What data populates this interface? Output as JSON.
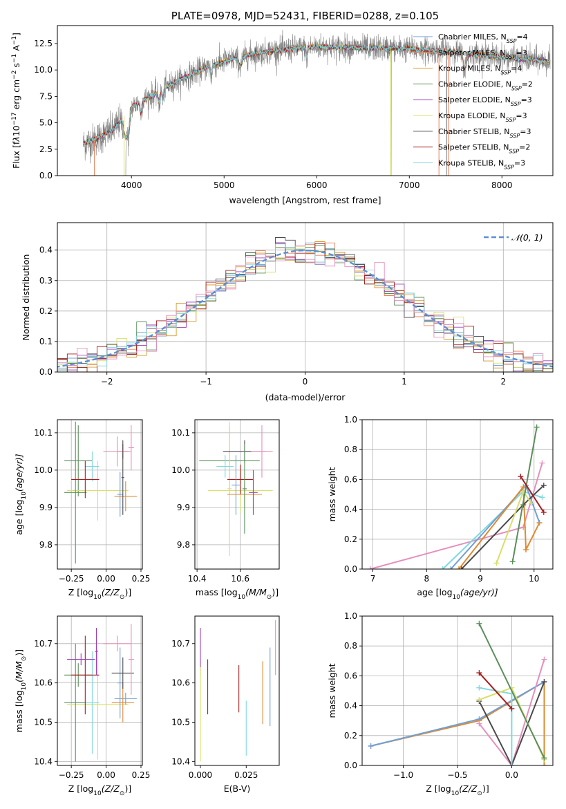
{
  "colors": {
    "chabrier_miles": "#6f9fd8",
    "salpeter_miles": "#ec7f58",
    "kroupa_miles": "#d49a2a",
    "chabrier_elodie": "#5a8f5a",
    "salpeter_elodie": "#9b3db8",
    "kroupa_elodie": "#d8df6a",
    "chabrier_stelib": "#4a4a4a",
    "salpeter_stelib": "#a81c1c",
    "kroupa_stelib": "#7fd8df",
    "model_pink": "#e58fbd",
    "model_orange": "#e08a30",
    "data_gray": "#808080",
    "normal_dashed": "#5a8fd6",
    "grid": "#b0b0b0"
  },
  "chart_data": [
    {
      "id": "spectrum",
      "type": "line",
      "title": "PLATE=0978, MJD=52431, FIBERID=0288, z=0.105",
      "xlabel": "wavelength [Angstrom, rest frame]",
      "ylabel_parts": [
        "Flux [f",
        "λ",
        "10",
        "−17",
        " erg cm",
        "−2",
        " s",
        "−1",
        " A",
        "−1",
        "]"
      ],
      "xlim": [
        3200,
        8550
      ],
      "ylim": [
        0,
        14.2
      ],
      "xticks": [
        "4000",
        "5000",
        "6000",
        "7000",
        "8000"
      ],
      "yticks": [
        "0.0",
        "2.5",
        "5.0",
        "7.5",
        "10.0",
        "12.5"
      ],
      "xtick_values": [
        4000,
        5000,
        6000,
        7000,
        8000
      ],
      "ytick_values": [
        0,
        2.5,
        5,
        7.5,
        10,
        12.5
      ],
      "continuum": {
        "x": [
          3480,
          3600,
          3800,
          4000,
          4200,
          4500,
          4800,
          5000,
          5200,
          5500,
          6000,
          6500,
          7000,
          7500,
          8000,
          8520
        ],
        "y": [
          3.0,
          3.4,
          4.3,
          6.5,
          7.5,
          9.0,
          10.2,
          10.8,
          11.3,
          11.8,
          12.2,
          12.1,
          12.0,
          11.7,
          11.2,
          10.8
        ]
      },
      "legend": {
        "placement": "upper right",
        "entries": [
          {
            "label": "Chabrier MILES, N",
            "sub": "SSP",
            "suffix": "=4",
            "color_key": "chabrier_miles"
          },
          {
            "label": "Salpeter MILES, N",
            "sub": "SSP",
            "suffix": "=3",
            "color_key": "salpeter_miles"
          },
          {
            "label": "Kroupa MILES, N",
            "sub": "SSP",
            "suffix": "=4",
            "color_key": "kroupa_miles"
          },
          {
            "label": "Chabrier ELODIE, N",
            "sub": "SSP",
            "suffix": "=2",
            "color_key": "chabrier_elodie"
          },
          {
            "label": "Salpeter ELODIE, N",
            "sub": "SSP",
            "suffix": "=3",
            "color_key": "salpeter_elodie"
          },
          {
            "label": "Kroupa ELODIE, N",
            "sub": "SSP",
            "suffix": "=3",
            "color_key": "kroupa_elodie"
          },
          {
            "label": "Chabrier STELIB, N",
            "sub": "SSP",
            "suffix": "=3",
            "color_key": "chabrier_stelib"
          },
          {
            "label": "Salpeter STELIB, N",
            "sub": "SSP",
            "suffix": "=2",
            "color_key": "salpeter_stelib"
          },
          {
            "label": "Kroupa STELIB, N",
            "sub": "SSP",
            "suffix": "=3",
            "color_key": "kroupa_stelib"
          }
        ]
      }
    },
    {
      "id": "residuals",
      "type": "histogram",
      "xlabel": "(data-model)/error",
      "ylabel": "Normed distribution",
      "xlim": [
        -2.5,
        2.5
      ],
      "ylim": [
        0,
        0.49
      ],
      "xticks": [
        "−2",
        "−1",
        "0",
        "1",
        "2"
      ],
      "xtick_values": [
        -2,
        -1,
        0,
        1,
        2
      ],
      "yticks": [
        "0.0",
        "0.1",
        "0.2",
        "0.3",
        "0.4"
      ],
      "ytick_values": [
        0,
        0.1,
        0.2,
        0.3,
        0.4
      ],
      "grid": true,
      "legend_label": "𝒩(0, 1)",
      "bin_width": 0.1
    },
    {
      "id": "age_vs_Z",
      "type": "errorbar",
      "xlabel_parts": [
        "Z [log",
        "10",
        "(Z/Z",
        "⊙",
        ")]"
      ],
      "ylabel_parts": [
        "age  [log",
        "10",
        "(age/yr)]"
      ],
      "xlim": [
        -0.35,
        0.26
      ],
      "ylim": [
        9.735,
        10.135
      ],
      "xticks": [
        "−0.25",
        "0.00",
        "0.25"
      ],
      "xtick_values": [
        -0.25,
        0,
        0.25
      ],
      "yticks": [
        "9.8",
        "9.9",
        "10.0",
        "10.1"
      ],
      "ytick_values": [
        9.8,
        9.9,
        10.0,
        10.1
      ],
      "grid": true,
      "points": [
        {
          "x": -0.2,
          "xerr": 0.1,
          "y": 10.025,
          "yerr": 0.095,
          "color_key": "chabrier_elodie"
        },
        {
          "x": -0.06,
          "xerr": 0.22,
          "y": 9.945,
          "yerr": 0.08,
          "color_key": "kroupa_elodie"
        },
        {
          "x": -0.22,
          "xerr": 0.08,
          "y": 9.94,
          "yerr": 0.19,
          "color_key": "chabrier_elodie"
        },
        {
          "x": -0.1,
          "xerr": 0.05,
          "y": 10.01,
          "yerr": 0.04,
          "color_key": "kroupa_stelib"
        },
        {
          "x": -0.15,
          "xerr": 0.1,
          "y": 9.975,
          "yerr": 0.05,
          "color_key": "salpeter_stelib"
        },
        {
          "x": 0.12,
          "xerr": 0.04,
          "y": 10.05,
          "yerr": 0.02,
          "color_key": "salpeter_stelib"
        },
        {
          "x": 0.08,
          "xerr": 0.1,
          "y": 10.05,
          "yerr": 0.04,
          "color_key": "model_pink"
        },
        {
          "x": 0.1,
          "xerr": 0.02,
          "y": 9.935,
          "yerr": 0.06,
          "color_key": "chabrier_miles"
        },
        {
          "x": 0.14,
          "xerr": 0.08,
          "y": 9.93,
          "yerr": 0.04,
          "color_key": "model_orange"
        },
        {
          "x": 0.18,
          "xerr": 0.02,
          "y": 10.06,
          "yerr": 0.06,
          "color_key": "model_pink"
        },
        {
          "x": 0.12,
          "xerr": 0.01,
          "y": 9.98,
          "yerr": 0.1,
          "color_key": "chabrier_stelib"
        }
      ]
    },
    {
      "id": "age_vs_mass",
      "type": "errorbar",
      "xlabel_parts": [
        "mass [log",
        "10",
        "(M/M",
        "⊙",
        ")]"
      ],
      "xlim": [
        10.39,
        10.78
      ],
      "ylim": [
        9.735,
        10.135
      ],
      "xticks": [
        "10.4",
        "10.6"
      ],
      "xtick_values": [
        10.4,
        10.6
      ],
      "yticks": [
        "9.8",
        "9.9",
        "10.0",
        "10.1"
      ],
      "ytick_values": [
        9.8,
        9.9,
        10.0,
        10.1
      ],
      "grid": true,
      "points": [
        {
          "x": 10.55,
          "xerr": 0.14,
          "y": 10.025,
          "yerr": 0.09,
          "color_key": "chabrier_elodie"
        },
        {
          "x": 10.6,
          "xerr": 0.15,
          "y": 9.945,
          "yerr": 0.06,
          "color_key": "kroupa_elodie"
        },
        {
          "x": 10.55,
          "xerr": 0.01,
          "y": 9.95,
          "yerr": 0.18,
          "color_key": "kroupa_elodie"
        },
        {
          "x": 10.53,
          "xerr": 0.04,
          "y": 10.01,
          "yerr": 0.03,
          "color_key": "kroupa_stelib"
        },
        {
          "x": 10.6,
          "xerr": 0.06,
          "y": 9.975,
          "yerr": 0.04,
          "color_key": "salpeter_stelib"
        },
        {
          "x": 10.62,
          "xerr": 0.1,
          "y": 10.05,
          "yerr": 0.03,
          "color_key": "chabrier_stelib"
        },
        {
          "x": 10.7,
          "xerr": 0.05,
          "y": 10.05,
          "yerr": 0.07,
          "color_key": "model_pink"
        },
        {
          "x": 10.58,
          "xerr": 0.02,
          "y": 9.96,
          "yerr": 0.08,
          "color_key": "chabrier_miles"
        },
        {
          "x": 10.62,
          "xerr": 0.08,
          "y": 9.935,
          "yerr": 0.03,
          "color_key": "model_orange"
        },
        {
          "x": 10.66,
          "xerr": 0.02,
          "y": 9.94,
          "yerr": 0.06,
          "color_key": "salpeter_elodie"
        },
        {
          "x": 10.62,
          "xerr": 0.01,
          "y": 9.95,
          "yerr": 0.12,
          "color_key": "chabrier_elodie"
        }
      ]
    },
    {
      "id": "weight_vs_age",
      "type": "line",
      "xlabel_parts": [
        "age  [log",
        "10",
        "(age/yr)]"
      ],
      "ylabel": "mass weight",
      "xlim": [
        6.8,
        10.35
      ],
      "ylim": [
        0,
        1
      ],
      "xticks": [
        "7",
        "8",
        "9",
        "10"
      ],
      "xtick_values": [
        7,
        8,
        9,
        10
      ],
      "yticks": [
        "0.0",
        "0.2",
        "0.4",
        "0.6",
        "0.8",
        "1.0"
      ],
      "ytick_values": [
        0,
        0.2,
        0.4,
        0.6,
        0.8,
        1.0
      ],
      "grid": true,
      "series": [
        {
          "color_key": "model_pink",
          "x": [
            6.95,
            9.8,
            10.15
          ],
          "y": [
            0.0,
            0.28,
            0.71
          ]
        },
        {
          "color_key": "kroupa_stelib",
          "x": [
            8.3,
            9.8,
            10.15
          ],
          "y": [
            0.0,
            0.52,
            0.48
          ]
        },
        {
          "color_key": "chabrier_miles",
          "x": [
            8.45,
            9.85,
            10.1
          ],
          "y": [
            0.0,
            0.56,
            0.31
          ]
        },
        {
          "color_key": "model_orange",
          "x": [
            8.6,
            9.8,
            9.85,
            10.1
          ],
          "y": [
            0.0,
            0.55,
            0.13,
            0.31
          ]
        },
        {
          "color_key": "chabrier_stelib",
          "x": [
            8.65,
            9.8,
            10.18
          ],
          "y": [
            0.0,
            0.43,
            0.56
          ]
        },
        {
          "color_key": "kroupa_elodie",
          "x": [
            9.3,
            9.8,
            9.95
          ],
          "y": [
            0.04,
            0.52,
            0.44
          ]
        },
        {
          "color_key": "chabrier_elodie",
          "x": [
            9.6,
            10.05
          ],
          "y": [
            0.05,
            0.95
          ]
        },
        {
          "color_key": "salpeter_stelib",
          "x": [
            9.75,
            10.18
          ],
          "y": [
            0.62,
            0.38
          ]
        }
      ]
    },
    {
      "id": "mass_vs_Z",
      "type": "errorbar",
      "xlabel_parts": [
        "Z [log",
        "10",
        "(Z/Z",
        "⊙",
        ")]"
      ],
      "ylabel_parts": [
        "mass [log",
        "10",
        "(M/M",
        "⊙",
        ")]"
      ],
      "xlim": [
        -0.35,
        0.26
      ],
      "ylim": [
        10.39,
        10.77
      ],
      "xticks": [
        "−0.25",
        "0.00",
        "0.25"
      ],
      "xtick_values": [
        -0.25,
        0,
        0.25
      ],
      "yticks": [
        "10.4",
        "10.5",
        "10.6",
        "10.7"
      ],
      "ytick_values": [
        10.4,
        10.5,
        10.6,
        10.7
      ],
      "grid": true,
      "points": [
        {
          "x": -0.2,
          "xerr": 0.1,
          "y": 10.62,
          "yerr": 0.03,
          "color_key": "chabrier_elodie"
        },
        {
          "x": -0.06,
          "xerr": 0.22,
          "y": 10.545,
          "yerr": 0.14,
          "color_key": "kroupa_elodie"
        },
        {
          "x": -0.22,
          "xerr": 0.08,
          "y": 10.55,
          "yerr": 0.15,
          "color_key": "chabrier_elodie"
        },
        {
          "x": -0.1,
          "xerr": 0.05,
          "y": 10.55,
          "yerr": 0.13,
          "color_key": "kroupa_stelib"
        },
        {
          "x": -0.15,
          "xerr": 0.1,
          "y": 10.62,
          "yerr": 0.1,
          "color_key": "salpeter_stelib"
        },
        {
          "x": -0.18,
          "xerr": 0.1,
          "y": 10.66,
          "yerr": 0.015,
          "color_key": "salpeter_elodie"
        },
        {
          "x": -0.07,
          "xerr": 0.01,
          "y": 10.68,
          "yerr": 0.06,
          "color_key": "salpeter_elodie"
        },
        {
          "x": 0.08,
          "xerr": 0.1,
          "y": 10.7,
          "yerr": 0.02,
          "color_key": "model_pink"
        },
        {
          "x": 0.1,
          "xerr": 0.02,
          "y": 10.6,
          "yerr": 0.09,
          "color_key": "chabrier_miles"
        },
        {
          "x": 0.14,
          "xerr": 0.08,
          "y": 10.56,
          "yerr": 0.015,
          "color_key": "chabrier_miles"
        },
        {
          "x": 0.12,
          "xerr": 0.08,
          "y": 10.55,
          "yerr": 0.05,
          "color_key": "model_orange"
        },
        {
          "x": 0.12,
          "xerr": 0.08,
          "y": 10.625,
          "yerr": 0.04,
          "color_key": "chabrier_stelib"
        },
        {
          "x": 0.18,
          "xerr": 0.02,
          "y": 10.66,
          "yerr": 0.09,
          "color_key": "model_pink"
        }
      ]
    },
    {
      "id": "mass_vs_ebv",
      "type": "errorbar",
      "xlabel": "E(B-V)",
      "xlim": [
        -0.003,
        0.043
      ],
      "ylim": [
        10.39,
        10.77
      ],
      "xticks": [
        "0.000",
        "0.025"
      ],
      "xtick_values": [
        0,
        0.025
      ],
      "yticks": [
        "10.4",
        "10.5",
        "10.6",
        "10.7"
      ],
      "ytick_values": [
        10.4,
        10.5,
        10.6,
        10.7
      ],
      "grid": false,
      "points": [
        {
          "x": 0.0,
          "y": 10.68,
          "yerr": 0.06,
          "color_key": "salpeter_elodie"
        },
        {
          "x": 0.0,
          "y": 10.52,
          "yerr": 0.12,
          "color_key": "kroupa_elodie"
        },
        {
          "x": 0.004,
          "y": 10.59,
          "yerr": 0.07,
          "color_key": "chabrier_stelib"
        },
        {
          "x": 0.021,
          "y": 10.585,
          "yerr": 0.06,
          "color_key": "salpeter_stelib"
        },
        {
          "x": 0.025,
          "y": 10.485,
          "yerr": 0.07,
          "color_key": "kroupa_stelib"
        },
        {
          "x": 0.034,
          "y": 10.575,
          "yerr": 0.08,
          "color_key": "model_orange"
        },
        {
          "x": 0.038,
          "y": 10.59,
          "yerr": 0.1,
          "color_key": "chabrier_miles"
        },
        {
          "x": 0.041,
          "y": 10.69,
          "yerr": 0.07,
          "color_key": "model_pink"
        }
      ]
    },
    {
      "id": "weight_vs_Z",
      "type": "line",
      "xlabel_parts": [
        "Z [log",
        "10",
        "(Z/Z",
        "⊙",
        ")]"
      ],
      "ylabel": "mass weight",
      "xlim": [
        -1.38,
        0.38
      ],
      "ylim": [
        0,
        1
      ],
      "xticks": [
        "−1.0",
        "−0.5",
        "0.0"
      ],
      "xtick_values": [
        -1.0,
        -0.5,
        0
      ],
      "yticks": [
        "0.0",
        "0.2",
        "0.4",
        "0.6",
        "0.8",
        "1.0"
      ],
      "ytick_values": [
        0,
        0.2,
        0.4,
        0.6,
        0.8,
        1.0
      ],
      "grid": true,
      "series": [
        {
          "color_key": "model_orange",
          "x": [
            -1.3,
            -0.3,
            0.3,
            0.3
          ],
          "y": [
            0.13,
            0.3,
            0.56,
            0.0
          ]
        },
        {
          "color_key": "chabrier_miles",
          "x": [
            -1.3,
            -0.3,
            0.3
          ],
          "y": [
            0.13,
            0.31,
            0.56
          ]
        },
        {
          "color_key": "model_pink",
          "x": [
            -0.3,
            0.0,
            0.3
          ],
          "y": [
            0.28,
            0.0,
            0.71
          ]
        },
        {
          "color_key": "chabrier_stelib",
          "x": [
            -0.3,
            0.0,
            0.3
          ],
          "y": [
            0.43,
            0.0,
            0.56
          ]
        },
        {
          "color_key": "kroupa_stelib",
          "x": [
            -0.3,
            0.0,
            0.0
          ],
          "y": [
            0.52,
            0.48,
            0.0
          ]
        },
        {
          "color_key": "kroupa_elodie",
          "x": [
            -0.3,
            0.0,
            0.3
          ],
          "y": [
            0.44,
            0.52,
            0.04
          ]
        },
        {
          "color_key": "salpeter_stelib",
          "x": [
            -0.3,
            0.0
          ],
          "y": [
            0.62,
            0.38
          ]
        },
        {
          "color_key": "chabrier_elodie",
          "x": [
            -0.3,
            0.3
          ],
          "y": [
            0.95,
            0.05
          ]
        }
      ]
    }
  ]
}
